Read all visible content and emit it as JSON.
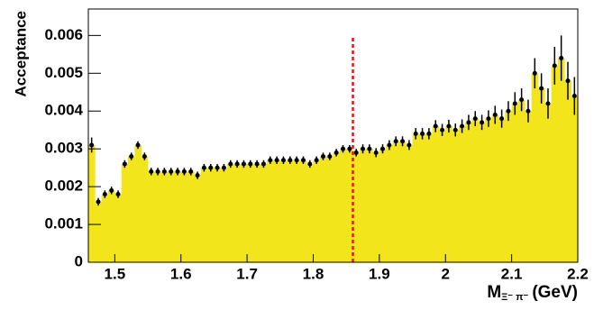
{
  "chart_data": {
    "type": "histogram",
    "ylabel": "Acceptance",
    "xlabel": {
      "main": "M",
      "sub": "Ξ⁻ π⁻",
      "unit": "(GeV)"
    },
    "color": "#f2e51c",
    "marker_color": "#000000",
    "bins": [
      1.46,
      1.47,
      1.48,
      1.49,
      1.5,
      1.51,
      1.52,
      1.53,
      1.54,
      1.55,
      1.56,
      1.57,
      1.58,
      1.59,
      1.6,
      1.61,
      1.62,
      1.63,
      1.64,
      1.65,
      1.66,
      1.67,
      1.68,
      1.69,
      1.7,
      1.71,
      1.72,
      1.73,
      1.74,
      1.75,
      1.76,
      1.77,
      1.78,
      1.79,
      1.8,
      1.81,
      1.82,
      1.83,
      1.84,
      1.85,
      1.86,
      1.87,
      1.88,
      1.89,
      1.9,
      1.91,
      1.92,
      1.93,
      1.94,
      1.95,
      1.96,
      1.97,
      1.98,
      1.99,
      2.0,
      2.01,
      2.02,
      2.03,
      2.04,
      2.05,
      2.06,
      2.07,
      2.08,
      2.09,
      2.1,
      2.11,
      2.12,
      2.13,
      2.14,
      2.15,
      2.16,
      2.17,
      2.18,
      2.19,
      2.2
    ],
    "values": [
      0.0031,
      0.0016,
      0.0018,
      0.0019,
      0.0018,
      0.0026,
      0.0028,
      0.0031,
      0.0028,
      0.0024,
      0.0024,
      0.0024,
      0.0024,
      0.0024,
      0.0024,
      0.0024,
      0.0023,
      0.0025,
      0.0025,
      0.0025,
      0.0025,
      0.0026,
      0.0026,
      0.0026,
      0.0026,
      0.0026,
      0.0026,
      0.0027,
      0.0027,
      0.0027,
      0.0027,
      0.0027,
      0.0027,
      0.0026,
      0.0027,
      0.0028,
      0.0028,
      0.0029,
      0.003,
      0.003,
      0.0029,
      0.003,
      0.003,
      0.0029,
      0.003,
      0.0031,
      0.0032,
      0.0032,
      0.0031,
      0.0034,
      0.0034,
      0.0034,
      0.0036,
      0.0035,
      0.0036,
      0.0035,
      0.0036,
      0.0037,
      0.0038,
      0.0037,
      0.0038,
      0.0039,
      0.0038,
      0.004,
      0.0042,
      0.0043,
      0.004,
      0.005,
      0.0046,
      0.0042,
      0.0052,
      0.0054,
      0.0048,
      0.0044
    ],
    "errors": [
      0.0002,
      0.0001,
      0.0001,
      0.0001,
      0.0001,
      0.0001,
      0.0001,
      0.0001,
      0.0001,
      0.0001,
      0.0001,
      0.0001,
      0.0001,
      0.0001,
      0.0001,
      0.0001,
      0.0001,
      0.0001,
      0.0001,
      0.0001,
      0.0001,
      0.0001,
      0.0001,
      0.0001,
      0.0001,
      0.0001,
      0.0001,
      0.0001,
      0.0001,
      0.0001,
      0.0001,
      0.0001,
      0.0001,
      0.0001,
      0.0001,
      0.0001,
      0.0001,
      0.0001,
      0.0001,
      0.0001,
      0.0001,
      0.00012,
      0.00012,
      0.00012,
      0.00012,
      0.00013,
      0.00013,
      0.00013,
      0.00013,
      0.00015,
      0.00015,
      0.00015,
      0.00016,
      0.00016,
      0.00017,
      0.00017,
      0.00018,
      0.0002,
      0.0002,
      0.0002,
      0.00022,
      0.00024,
      0.00024,
      0.00026,
      0.0003,
      0.0003,
      0.0003,
      0.0004,
      0.0004,
      0.0004,
      0.0005,
      0.0006,
      0.0005,
      0.0005
    ],
    "xlim": [
      1.46,
      2.2
    ],
    "ylim": [
      0,
      0.0067
    ],
    "xticks": [
      1.5,
      1.6,
      1.7,
      1.8,
      1.9,
      2,
      2.1,
      2.2
    ],
    "yticks": [
      0,
      0.001,
      0.002,
      0.003,
      0.004,
      0.005,
      0.006
    ],
    "vline": {
      "x": 1.86,
      "ymax": 0.006,
      "color": "#e8141c"
    }
  }
}
